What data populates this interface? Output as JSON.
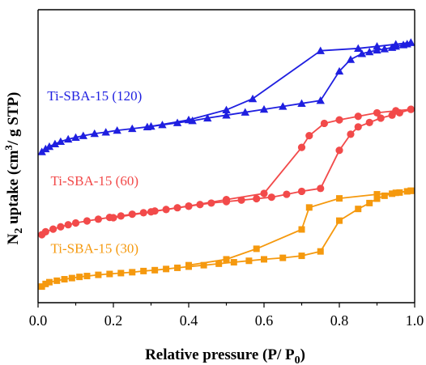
{
  "chart_data": {
    "type": "line",
    "xlabel": "Relative pressure (P/ P",
    "xlabel_sub": "0",
    "xlabel_close": ")",
    "ylabel_pre": "N",
    "ylabel_sub": "2",
    "ylabel_mid": " uptake (cm",
    "ylabel_sup": "3",
    "ylabel_post": "/ g STP)",
    "xlim": [
      0,
      1.0
    ],
    "ylim": [
      0,
      100
    ],
    "x_ticks": [
      "0.0",
      "0.2",
      "0.4",
      "0.6",
      "0.8",
      "1.0"
    ],
    "y_ticks_labeled": false,
    "grid": false,
    "series": [
      {
        "name": "Ti-SBA-15 (120)",
        "color": "#1f1fe0",
        "marker": "triangle",
        "adsorption": {
          "x": [
            0.01,
            0.02,
            0.03,
            0.045,
            0.06,
            0.08,
            0.1,
            0.12,
            0.15,
            0.18,
            0.21,
            0.25,
            0.29,
            0.33,
            0.37,
            0.41,
            0.45,
            0.5,
            0.55,
            0.6,
            0.65,
            0.7,
            0.75,
            0.8,
            0.83,
            0.86,
            0.88,
            0.9,
            0.92,
            0.94,
            0.95,
            0.97,
            0.98,
            0.99
          ],
          "y": [
            51.5,
            52.5,
            53.3,
            54.2,
            55.0,
            55.8,
            56.4,
            57.0,
            57.7,
            58.2,
            58.8,
            59.4,
            60.0,
            60.7,
            61.4,
            62.1,
            63.0,
            64.0,
            65.0,
            66.0,
            67.0,
            68.0,
            69.0,
            79.0,
            83.0,
            85.0,
            85.6,
            86.2,
            86.6,
            87.1,
            87.5,
            88.0,
            88.3,
            88.8
          ]
        },
        "desorption": {
          "x": [
            0.99,
            0.95,
            0.9,
            0.85,
            0.75,
            0.57,
            0.5,
            0.4,
            0.3
          ],
          "y": [
            88.8,
            88.2,
            87.5,
            86.8,
            86.0,
            69.6,
            65.8,
            62.4,
            60.2
          ]
        },
        "label_x": 0.15,
        "label_y": 69.0
      },
      {
        "name": "Ti-SBA-15 (60)",
        "color": "#f24a4a",
        "marker": "circle",
        "adsorption": {
          "x": [
            0.01,
            0.02,
            0.04,
            0.06,
            0.08,
            0.1,
            0.13,
            0.16,
            0.19,
            0.22,
            0.25,
            0.28,
            0.31,
            0.34,
            0.37,
            0.4,
            0.43,
            0.46,
            0.5,
            0.54,
            0.58,
            0.62,
            0.66,
            0.7,
            0.75,
            0.8,
            0.83,
            0.85,
            0.88,
            0.91,
            0.94,
            0.96,
            0.99
          ],
          "y": [
            23.2,
            24.2,
            25.1,
            25.9,
            26.6,
            27.2,
            27.9,
            28.5,
            29.1,
            29.6,
            30.2,
            30.7,
            31.3,
            31.8,
            32.4,
            32.9,
            33.5,
            34.0,
            34.5,
            35.0,
            35.5,
            36.0,
            37.0,
            38.0,
            39.0,
            52.0,
            57.5,
            60.0,
            61.5,
            63.0,
            64.0,
            64.8,
            66.0
          ]
        },
        "desorption": {
          "x": [
            0.99,
            0.95,
            0.9,
            0.85,
            0.8,
            0.76,
            0.72,
            0.7,
            0.6,
            0.5,
            0.4,
            0.3,
            0.2
          ],
          "y": [
            66.0,
            65.5,
            64.8,
            63.6,
            62.4,
            61.2,
            57.0,
            53.0,
            37.3,
            35.2,
            33.0,
            31.0,
            29.0
          ]
        },
        "label_x": 0.15,
        "label_y": 40.0
      },
      {
        "name": "Ti-SBA-15 (30)",
        "color": "#f5990e",
        "marker": "square",
        "adsorption": {
          "x": [
            0.01,
            0.02,
            0.03,
            0.05,
            0.07,
            0.09,
            0.11,
            0.13,
            0.16,
            0.19,
            0.22,
            0.25,
            0.28,
            0.31,
            0.34,
            0.37,
            0.4,
            0.44,
            0.48,
            0.52,
            0.56,
            0.6,
            0.65,
            0.7,
            0.75,
            0.8,
            0.85,
            0.88,
            0.9,
            0.92,
            0.94,
            0.96,
            0.98,
            0.99
          ],
          "y": [
            5.5,
            6.4,
            7.0,
            7.5,
            8.0,
            8.4,
            8.8,
            9.1,
            9.5,
            9.8,
            10.1,
            10.4,
            10.8,
            11.1,
            11.5,
            11.9,
            12.3,
            12.8,
            13.3,
            13.8,
            14.3,
            14.8,
            15.3,
            16.0,
            17.5,
            28.0,
            32.0,
            34.0,
            35.5,
            36.5,
            37.2,
            37.6,
            38.0,
            38.2
          ]
        },
        "desorption": {
          "x": [
            0.99,
            0.95,
            0.9,
            0.8,
            0.72,
            0.7,
            0.58,
            0.5,
            0.4
          ],
          "y": [
            38.2,
            37.5,
            37.0,
            35.6,
            32.5,
            25.0,
            18.4,
            14.8,
            12.8
          ]
        },
        "label_x": 0.15,
        "label_y": 17.0
      }
    ]
  }
}
